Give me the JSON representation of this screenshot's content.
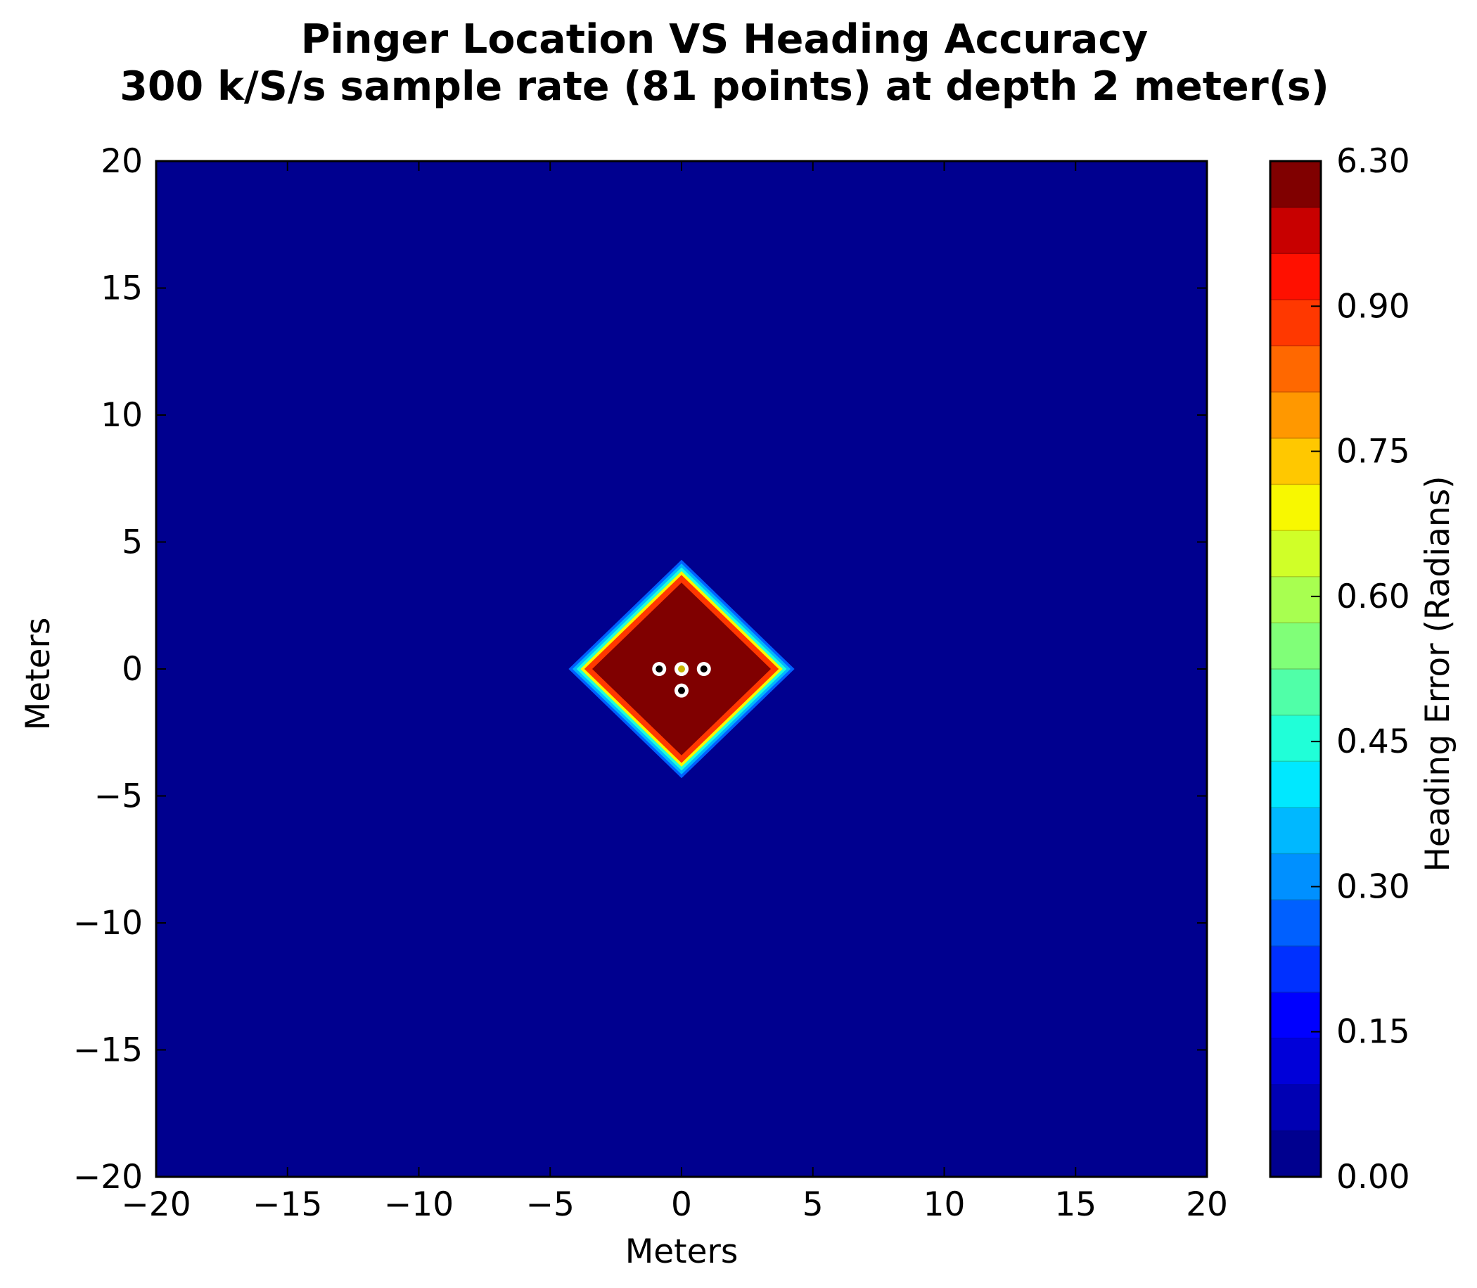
{
  "chart_data": {
    "type": "heatmap",
    "title": "Pinger Location VS Heading Accuracy",
    "subtitle": "300 k/S/s sample rate (81 points) at depth 2 meter(s)",
    "xlabel": "Meters",
    "ylabel": "Meters",
    "xlim": [
      -20,
      20
    ],
    "ylim": [
      -20,
      20
    ],
    "x_ticks": [
      -20,
      -15,
      -10,
      -5,
      0,
      5,
      10,
      15,
      20
    ],
    "y_ticks": [
      -20,
      -15,
      -10,
      -5,
      0,
      5,
      10,
      15,
      20
    ],
    "x_tick_labels": [
      "−20",
      "−15",
      "−10",
      "−5",
      "0",
      "5",
      "10",
      "15",
      "20"
    ],
    "y_tick_labels": [
      "−20",
      "−15",
      "−10",
      "−5",
      "0",
      "5",
      "10",
      "15",
      "20"
    ],
    "grid": false,
    "background_value": 0.0,
    "region": {
      "shape": "diamond",
      "center": [
        0,
        0
      ],
      "core_value": 6.3,
      "core_half_width": 3.4,
      "inner_rings": [
        {
          "half_width": 3.55,
          "value": 1.05
        },
        {
          "half_width": 3.7,
          "value": 0.95
        }
      ],
      "outer_rings": [
        {
          "half_width": 3.85,
          "value": 0.7
        },
        {
          "half_width": 4.0,
          "value": 0.45
        },
        {
          "half_width": 4.15,
          "value": 0.35
        },
        {
          "half_width": 4.3,
          "value": 0.25
        }
      ]
    },
    "hydrophones": [
      {
        "x": -0.85,
        "y": 0.0,
        "fill": "#000000"
      },
      {
        "x": 0.0,
        "y": 0.0,
        "fill": "#c8b400"
      },
      {
        "x": 0.85,
        "y": 0.0,
        "fill": "#000000"
      },
      {
        "x": 0.0,
        "y": -0.85,
        "fill": "#000000"
      }
    ],
    "colorbar": {
      "label": "Heading Error (Radians)",
      "tick_labels": [
        "0.00",
        "0.15",
        "0.30",
        "0.45",
        "0.60",
        "0.75",
        "0.90",
        "6.30"
      ],
      "colors": [
        "#00008f",
        "#0000b3",
        "#0000d9",
        "#0000ff",
        "#0030ff",
        "#0060ff",
        "#0090ff",
        "#00b8ff",
        "#00e8ff",
        "#20ffd8",
        "#50ffa8",
        "#80ff78",
        "#a8ff50",
        "#d0ff28",
        "#f8f800",
        "#ffc800",
        "#ff9800",
        "#ff6800",
        "#ff3800",
        "#ff1000",
        "#c80000",
        "#800000"
      ]
    }
  }
}
